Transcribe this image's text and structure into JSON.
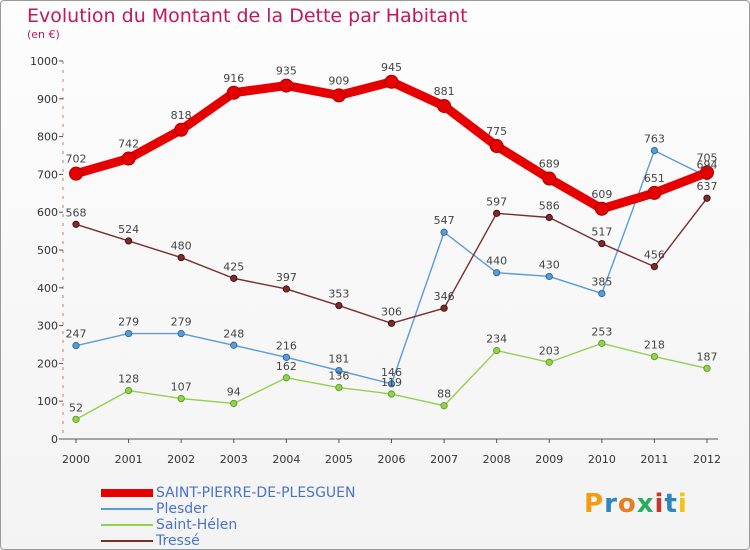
{
  "chart_data": {
    "type": "line",
    "title": "Evolution du Montant de la Dette par Habitant",
    "subtitle": "(en €)",
    "x": [
      "2000",
      "2001",
      "2002",
      "2003",
      "2004",
      "2005",
      "2006",
      "2007",
      "2008",
      "2009",
      "2010",
      "2011",
      "2012"
    ],
    "ylim": [
      0,
      1000
    ],
    "yticks": [
      0,
      100,
      200,
      300,
      400,
      500,
      600,
      700,
      800,
      900,
      1000
    ],
    "grid": false,
    "legend_position": "bottom-left",
    "series": [
      {
        "name": "SAINT-PIERRE-DE-PLESGUEN",
        "color": "#e60000",
        "values": [
          702,
          742,
          818,
          916,
          935,
          909,
          945,
          881,
          775,
          689,
          609,
          651,
          705
        ]
      },
      {
        "name": "Plesder",
        "color": "#5b9bd5",
        "values": [
          247,
          279,
          279,
          248,
          216,
          181,
          146,
          547,
          440,
          430,
          385,
          763,
          694
        ]
      },
      {
        "name": "Saint-Hélen",
        "color": "#92d050",
        "values": [
          52,
          128,
          107,
          94,
          162,
          136,
          119,
          88,
          234,
          203,
          253,
          218,
          187
        ]
      },
      {
        "name": "Tressé",
        "color": "#7b2c2c",
        "values": [
          568,
          524,
          480,
          425,
          397,
          353,
          306,
          346,
          597,
          586,
          517,
          456,
          637
        ]
      }
    ]
  },
  "logo": {
    "letters": [
      "P",
      "r",
      "o",
      "x",
      "i",
      "t",
      "i"
    ],
    "colors": [
      "#f39c12",
      "#2e86c1",
      "#e67e22",
      "#27ae60",
      "#c0392b",
      "#2e86c1",
      "#f1c40f"
    ]
  }
}
